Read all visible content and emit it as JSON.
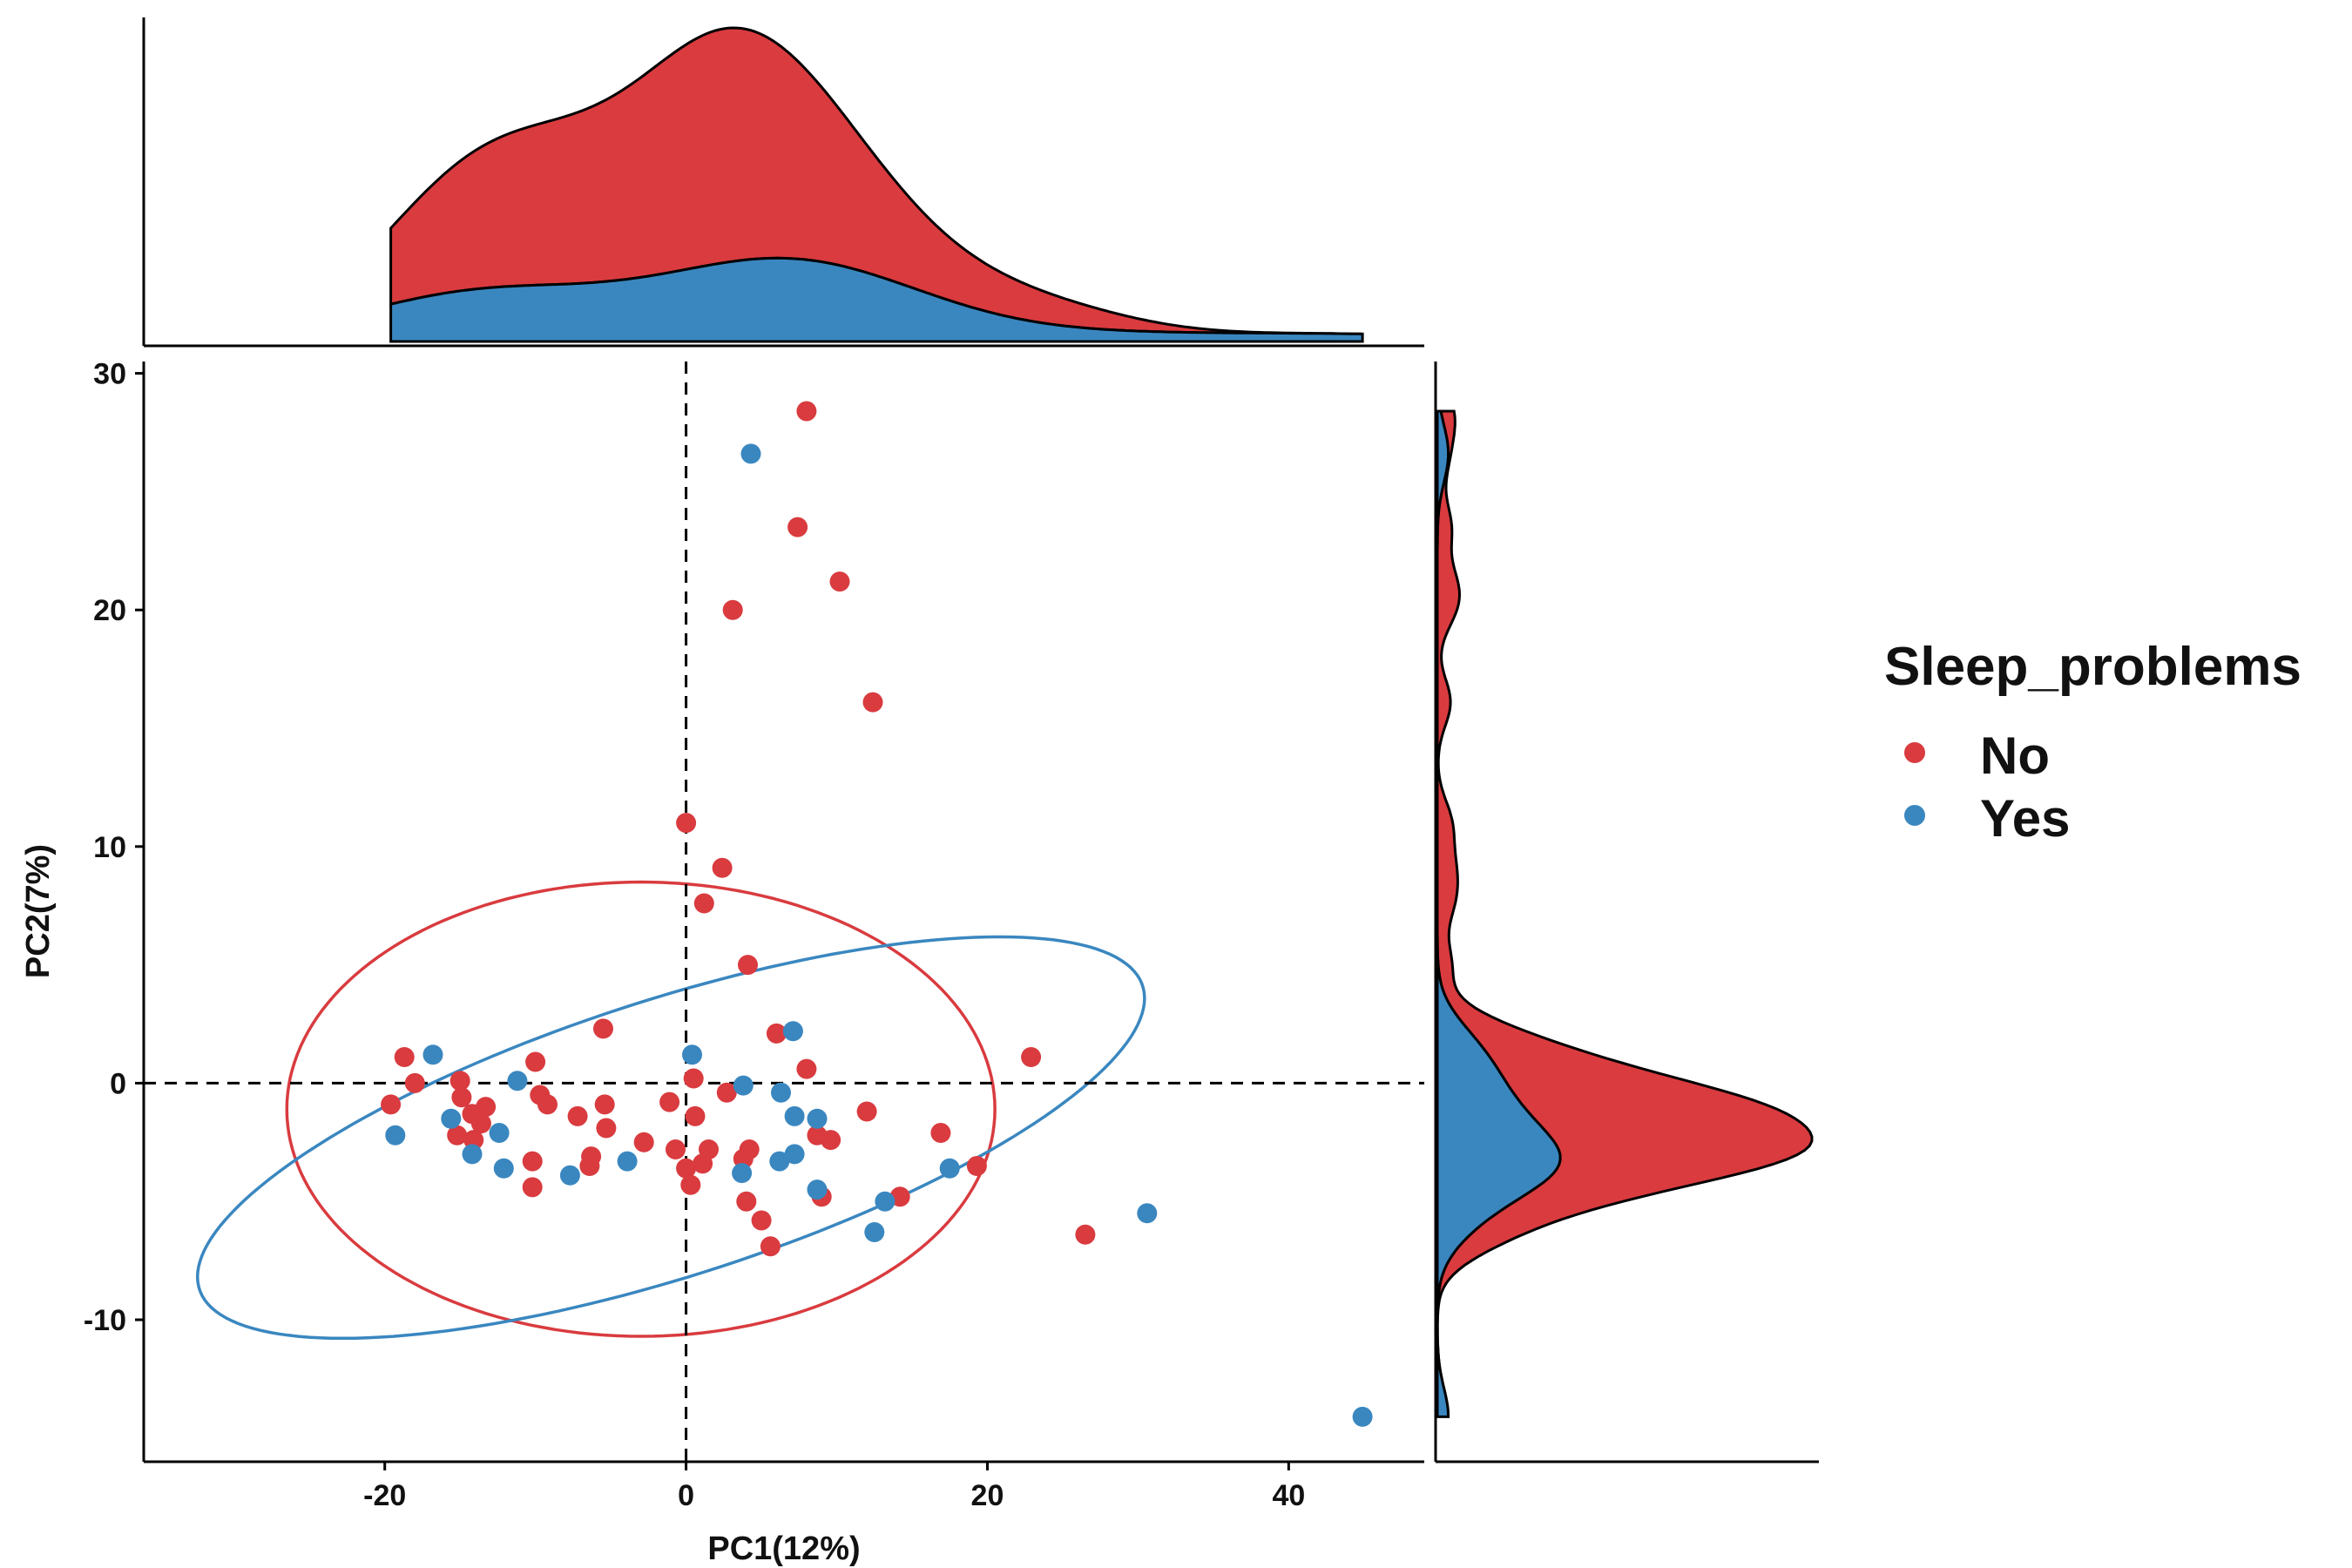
{
  "chart_data": {
    "type": "scatter",
    "title": "",
    "xlabel": "PC1(12%)",
    "ylabel": "PC2(7%)",
    "xlim": [
      -36,
      49
    ],
    "ylim": [
      -16,
      30.5
    ],
    "x_ticks": [
      -20,
      0,
      20,
      40
    ],
    "y_ticks": [
      -10,
      0,
      10,
      20,
      30
    ],
    "reference_lines": {
      "x": 0,
      "y": 0,
      "style": "dashed"
    },
    "grid": false,
    "marginal_density": {
      "top": "PC1",
      "right": "PC2",
      "stacked": true
    },
    "legend": {
      "title": "Sleep_problems",
      "position": "right"
    },
    "series": [
      {
        "name": "No",
        "color": "#d93b3f",
        "ellipse": {
          "cx": -3,
          "cy": -1.1,
          "rx": 23.5,
          "ry": 9.6,
          "angle_deg": 0
        },
        "points": [
          [
            8,
            28.4
          ],
          [
            7.4,
            23.5
          ],
          [
            10.2,
            21.2
          ],
          [
            3.1,
            20
          ],
          [
            12.4,
            16.1
          ],
          [
            0,
            11
          ],
          [
            2.4,
            9.1
          ],
          [
            1.2,
            7.6
          ],
          [
            4.1,
            5
          ],
          [
            -5.5,
            2.3
          ],
          [
            6,
            2.1
          ],
          [
            22.9,
            1.1
          ],
          [
            -18.7,
            1.1
          ],
          [
            -10,
            0.9
          ],
          [
            8,
            0.6
          ],
          [
            -18,
            0
          ],
          [
            -15,
            0.1
          ],
          [
            0.5,
            0.2
          ],
          [
            2.7,
            -0.4
          ],
          [
            -14.9,
            -0.6
          ],
          [
            -9.7,
            -0.5
          ],
          [
            -9.2,
            -0.9
          ],
          [
            -13.3,
            -1
          ],
          [
            -19.6,
            -0.9
          ],
          [
            -5.4,
            -0.9
          ],
          [
            -1.1,
            -0.8
          ],
          [
            -14.2,
            -1.3
          ],
          [
            -7.2,
            -1.4
          ],
          [
            0.6,
            -1.4
          ],
          [
            12,
            -1.2
          ],
          [
            -13.6,
            -1.7
          ],
          [
            -5.3,
            -1.9
          ],
          [
            16.9,
            -2.1
          ],
          [
            8.7,
            -2.2
          ],
          [
            9.6,
            -2.4
          ],
          [
            -15.2,
            -2.2
          ],
          [
            -2.8,
            -2.5
          ],
          [
            -14.1,
            -2.4
          ],
          [
            1.5,
            -2.8
          ],
          [
            4.2,
            -2.8
          ],
          [
            -0.7,
            -2.8
          ],
          [
            -10.2,
            -3.3
          ],
          [
            -6.3,
            -3.1
          ],
          [
            3.8,
            -3.2
          ],
          [
            -6.4,
            -3.5
          ],
          [
            1.1,
            -3.4
          ],
          [
            19.3,
            -3.5
          ],
          [
            0,
            -3.6
          ],
          [
            0.3,
            -4.3
          ],
          [
            -10.2,
            -4.4
          ],
          [
            14.2,
            -4.8
          ],
          [
            9,
            -4.8
          ],
          [
            4,
            -5
          ],
          [
            5,
            -5.8
          ],
          [
            26.5,
            -6.4
          ],
          [
            5.6,
            -6.9
          ]
        ]
      },
      {
        "name": "Yes",
        "color": "#3a87c0",
        "ellipse": {
          "cx": -1,
          "cy": -2.3,
          "rx": 32,
          "ry": 6,
          "angle_deg": 11
        },
        "points": [
          [
            4.3,
            26.6
          ],
          [
            7.1,
            2.2
          ],
          [
            -16.8,
            1.2
          ],
          [
            0.4,
            1.2
          ],
          [
            -11.2,
            0.1
          ],
          [
            3.8,
            -0.1
          ],
          [
            6.3,
            -0.4
          ],
          [
            -12.4,
            -2.1
          ],
          [
            7.2,
            -1.4
          ],
          [
            -15.6,
            -1.5
          ],
          [
            8.7,
            -1.5
          ],
          [
            -19.3,
            -2.2
          ],
          [
            -14.2,
            -3
          ],
          [
            7.2,
            -3
          ],
          [
            6.2,
            -3.3
          ],
          [
            -3.9,
            -3.3
          ],
          [
            3.7,
            -3.8
          ],
          [
            -12.1,
            -3.6
          ],
          [
            -7.7,
            -3.9
          ],
          [
            17.5,
            -3.6
          ],
          [
            8.7,
            -4.5
          ],
          [
            13.2,
            -5
          ],
          [
            30.6,
            -5.5
          ],
          [
            12.5,
            -6.3
          ],
          [
            44.9,
            -14.1
          ]
        ]
      }
    ]
  }
}
